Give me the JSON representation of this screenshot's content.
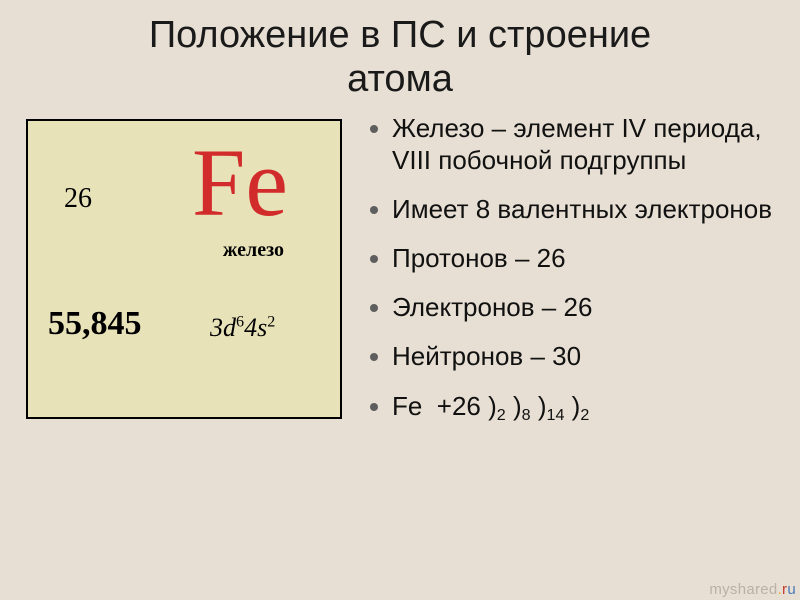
{
  "title_line1": "Положение в ПС и строение",
  "title_line2": "атома",
  "element": {
    "atomic_number": "26",
    "symbol": "Fe",
    "name": "железо",
    "mass": "55,845",
    "config_html": "3<i>d</i><sup>6</sup>4<i>s</i><sup>2</sup>"
  },
  "bullets": [
    {
      "html": "Железо – элемент IV периода, VIII побочной подгруппы"
    },
    {
      "html": "Имеет 8 валентных электронов"
    },
    {
      "html": "Протонов – 26"
    },
    {
      "html": "Электронов – 26"
    },
    {
      "html": "Нейтронов – 30"
    },
    {
      "html": "Fe  +26 )<sub>2</sub> )<sub>8</sub> )<sub>14</sub> )<sub>2</sub>"
    }
  ],
  "watermark": {
    "gray": "myshared",
    "dot": ".ru"
  },
  "colors": {
    "bg": "#e7dfd3",
    "box_bg": "#e8e2b9",
    "box_border": "#000000",
    "symbol": "#d22b2b",
    "bullet_dot": "#5e5e5e"
  },
  "typography": {
    "title_fontsize": 38,
    "bullet_fontsize": 26,
    "symbol_fontsize": 96,
    "mass_fontsize": 34,
    "config_fontsize": 26,
    "name_fontsize": 20,
    "atomic_number_fontsize": 28
  }
}
